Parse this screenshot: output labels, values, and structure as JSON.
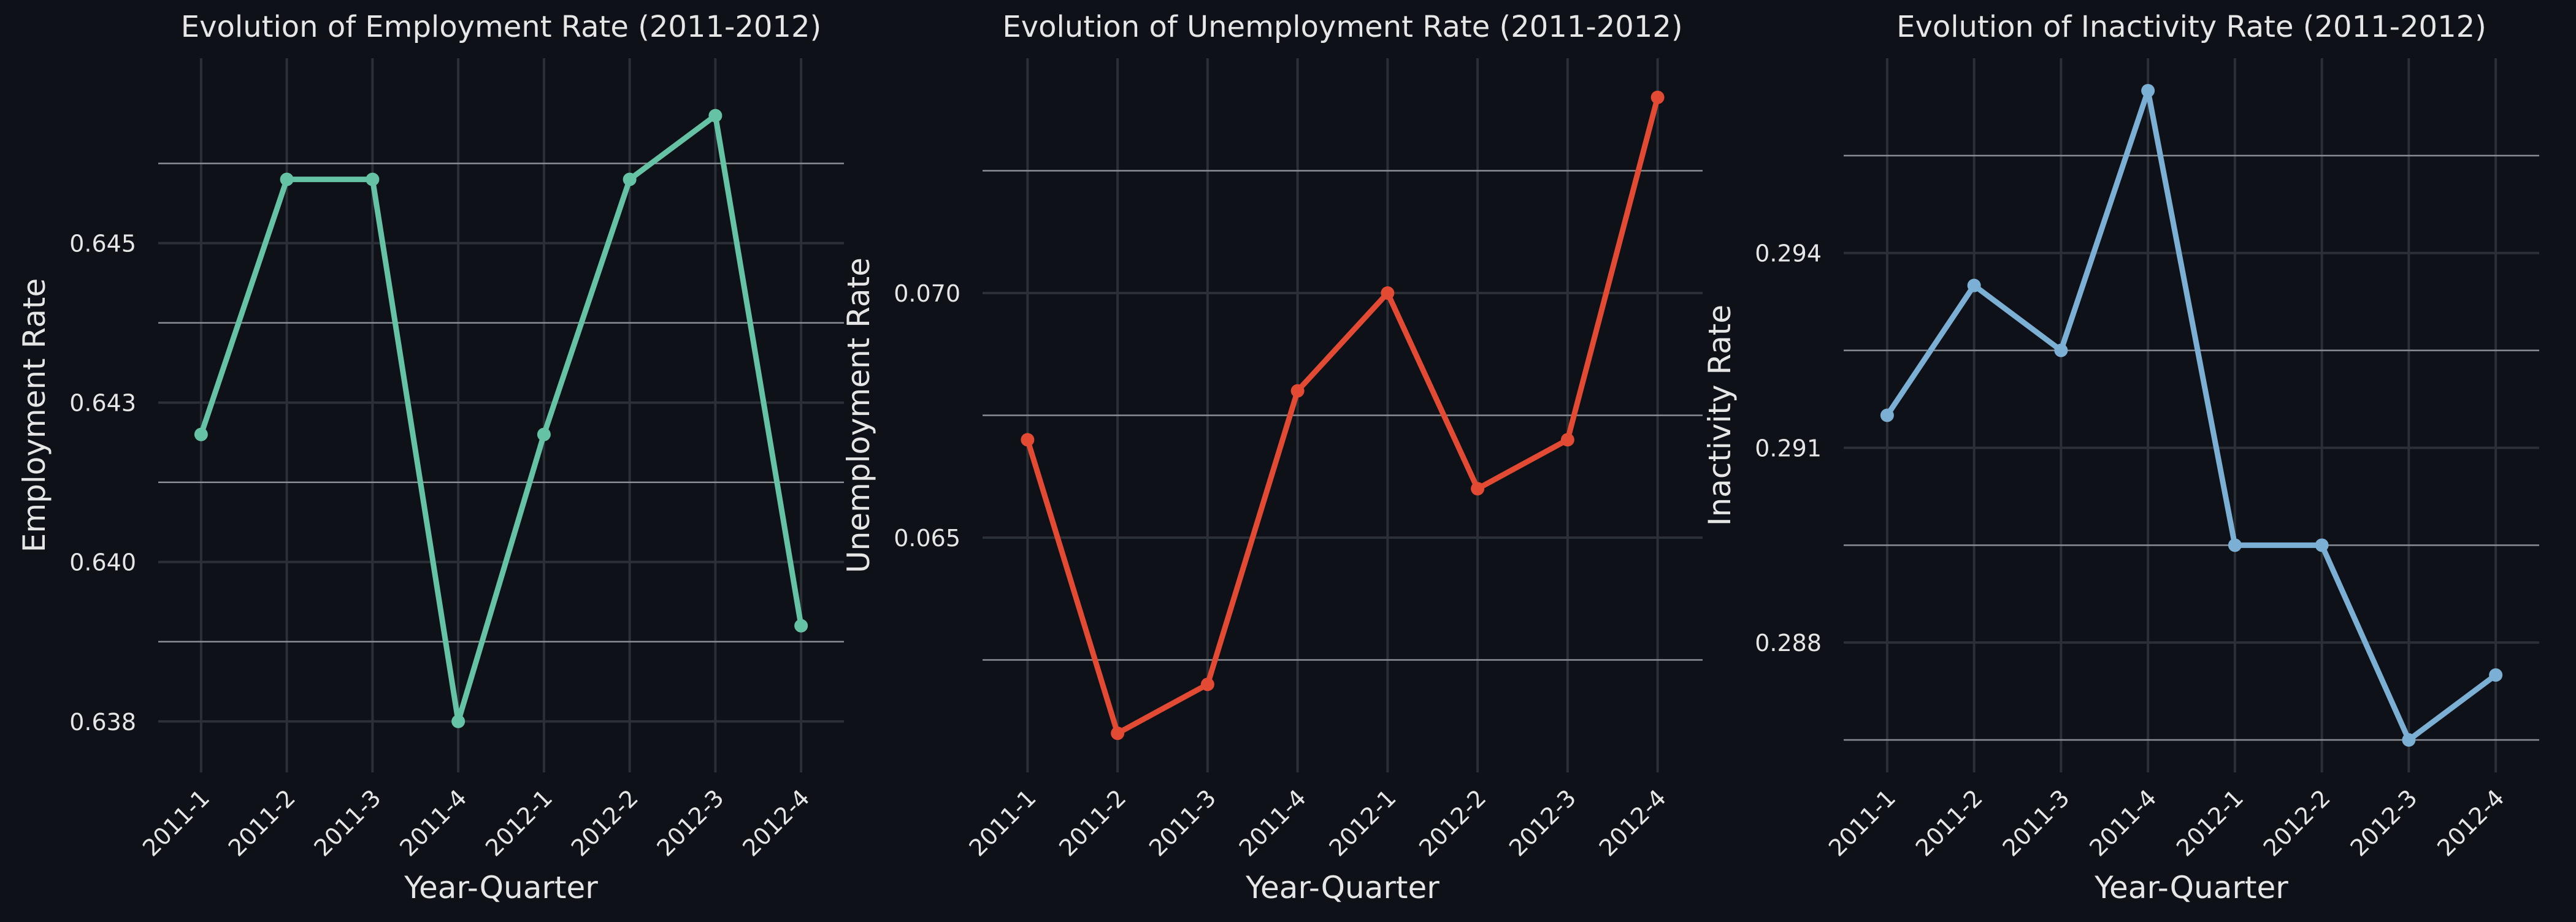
{
  "colors": {
    "background": "#0e1117",
    "text": "#e6e6e6",
    "grid": "#2b2f36",
    "ref_line": "#8a8f96"
  },
  "chart_data": [
    {
      "type": "line",
      "title": "Evolution of Employment Rate (2011-2012)",
      "xlabel": "Year-Quarter",
      "ylabel": "Employment Rate",
      "color": "#66c2a5",
      "categories": [
        "2011-1",
        "2011-2",
        "2011-3",
        "2011-4",
        "2012-1",
        "2012-2",
        "2012-3",
        "2012-4"
      ],
      "values": [
        0.642,
        0.646,
        0.646,
        0.6375,
        0.642,
        0.646,
        0.647,
        0.639
      ],
      "yticks": [
        0.6375,
        0.64,
        0.6425,
        0.645
      ],
      "ytick_labels": [
        "0.638",
        "0.640",
        "0.643",
        "0.645"
      ],
      "ylim": [
        0.6367,
        0.6479
      ],
      "grid": true
    },
    {
      "type": "line",
      "title": "Evolution of Unemployment Rate (2011-2012)",
      "xlabel": "Year-Quarter",
      "ylabel": "Unemployment Rate",
      "color": "#e34a33",
      "categories": [
        "2011-1",
        "2011-2",
        "2011-3",
        "2011-4",
        "2012-1",
        "2012-2",
        "2012-3",
        "2012-4"
      ],
      "values": [
        0.067,
        0.061,
        0.062,
        0.068,
        0.07,
        0.066,
        0.067,
        0.074
      ],
      "yticks": [
        0.065,
        0.07
      ],
      "ytick_labels": [
        "0.065",
        "0.070"
      ],
      "ylim": [
        0.0602,
        0.0748
      ],
      "grid": true
    },
    {
      "type": "line",
      "title": "Evolution of Inactivity Rate (2011-2012)",
      "xlabel": "Year-Quarter",
      "ylabel": "Inactivity Rate",
      "color": "#7bafd4",
      "categories": [
        "2011-1",
        "2011-2",
        "2011-3",
        "2011-4",
        "2012-1",
        "2012-2",
        "2012-3",
        "2012-4"
      ],
      "values": [
        0.291,
        0.293,
        0.292,
        0.296,
        0.289,
        0.289,
        0.286,
        0.287
      ],
      "yticks": [
        0.2875,
        0.2905,
        0.2935
      ],
      "ytick_labels": [
        "0.288",
        "0.291",
        "0.294"
      ],
      "ylim": [
        0.2855,
        0.2965
      ],
      "grid": true
    }
  ]
}
